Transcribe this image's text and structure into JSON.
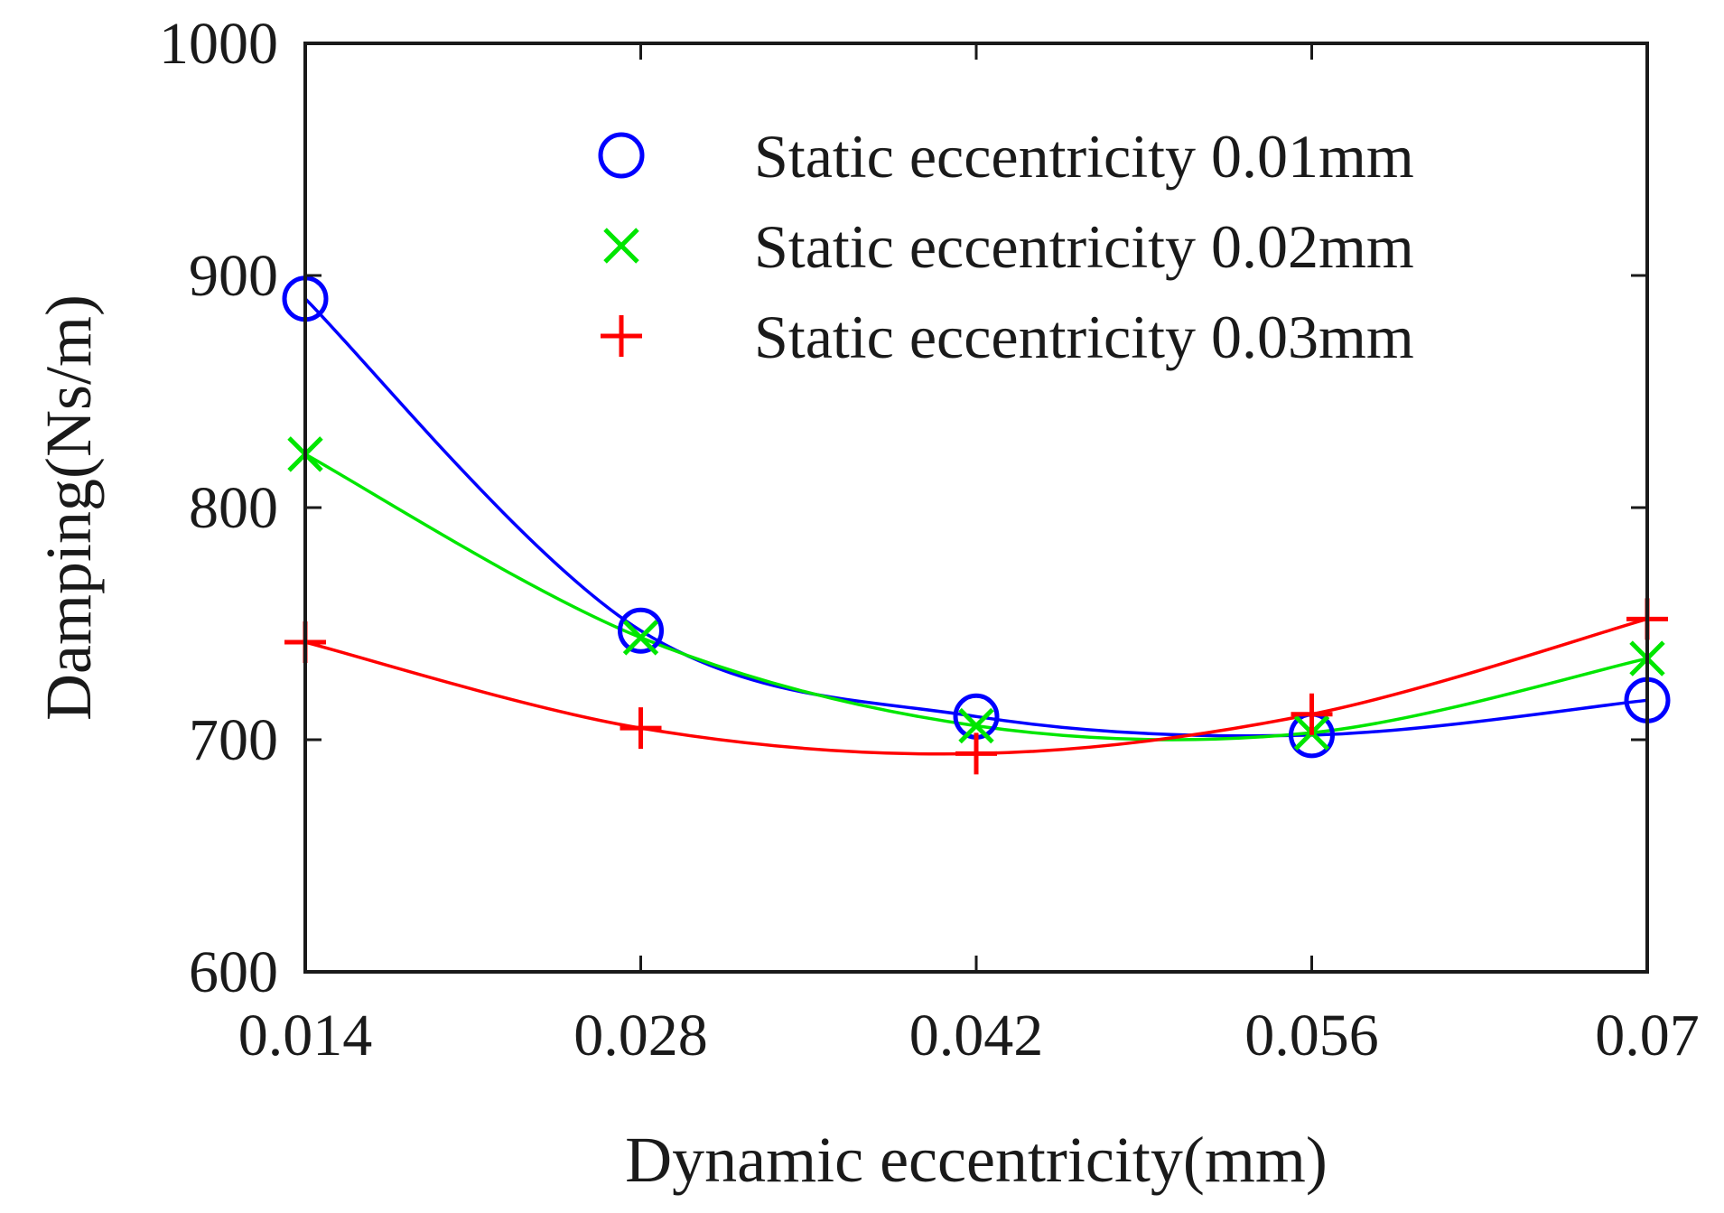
{
  "chart_data": {
    "type": "scatter",
    "title": "",
    "xlabel": "Dynamic eccentricity(mm)",
    "ylabel": "Damping(Ns/m)",
    "x": [
      0.014,
      0.028,
      0.042,
      0.056,
      0.07
    ],
    "x_tick_labels": [
      "0.014",
      "0.028",
      "0.042",
      "0.056",
      "0.07"
    ],
    "y_ticks": [
      600,
      700,
      800,
      900,
      1000
    ],
    "y_tick_labels": [
      "600",
      "700",
      "800",
      "900",
      "1000"
    ],
    "xlim": [
      0.014,
      0.07
    ],
    "ylim": [
      600,
      1000
    ],
    "grid": false,
    "legend_position": "top-right",
    "fit": "smooth curve through markers",
    "series": [
      {
        "name": "Static eccentricity 0.01mm",
        "marker": "circle",
        "color": "#0000ff",
        "values": [
          890,
          747,
          710,
          702,
          717
        ]
      },
      {
        "name": "Static eccentricity 0.02mm",
        "marker": "x",
        "color": "#00e600",
        "values": [
          823,
          744,
          706,
          703,
          735
        ]
      },
      {
        "name": "Static eccentricity 0.03mm",
        "marker": "plus",
        "color": "#ff0000",
        "values": [
          742,
          705,
          694,
          711,
          752
        ]
      }
    ]
  }
}
